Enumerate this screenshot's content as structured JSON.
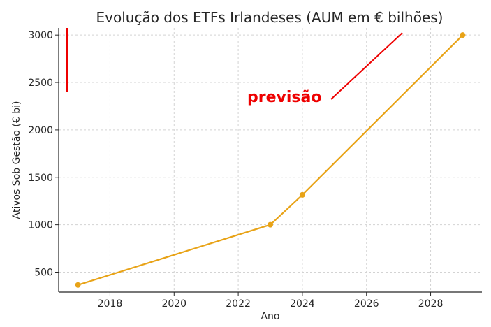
{
  "chart_data": {
    "type": "line",
    "title": "Evolução dos ETFs Irlandeses (AUM em € bilhões)",
    "xlabel": "Ano",
    "ylabel": "Ativos Sob Gestão (€ bi)",
    "xlim": [
      2016.4,
      2029.6
    ],
    "ylim": [
      290,
      3075
    ],
    "x_ticks": [
      2018,
      2020,
      2022,
      2024,
      2026,
      2028
    ],
    "y_ticks": [
      500,
      1000,
      1500,
      2000,
      2500,
      3000
    ],
    "grid": true,
    "series": [
      {
        "color": "#e8a317",
        "points": [
          {
            "x": 2017,
            "y": 365
          },
          {
            "x": 2023,
            "y": 1000
          },
          {
            "x": 2024,
            "y": 1315
          },
          {
            "x": 2029,
            "y": 3000
          }
        ]
      }
    ],
    "annotation": {
      "text": "previsão",
      "color": "#ee0000"
    }
  }
}
